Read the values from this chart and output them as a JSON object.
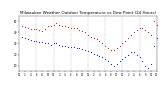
{
  "title": "Milwaukee Weather Outdoor Temperature vs Dew Point (24 Hours)",
  "title_fontsize": 3.0,
  "bg_color": "#ffffff",
  "temp_color": "#cc0000",
  "dew_color": "#0000cc",
  "black_color": "#000000",
  "grid_color": "#999999",
  "hours": [
    1,
    2,
    3,
    4,
    5,
    6,
    7,
    8,
    9,
    10,
    11,
    12,
    13,
    14,
    15,
    16,
    17,
    18,
    19,
    20,
    21,
    22,
    23,
    24,
    25,
    26,
    27,
    28,
    29,
    30,
    31,
    32,
    33,
    34,
    35,
    36,
    37,
    38,
    39,
    40,
    41,
    42,
    43,
    44,
    45,
    46,
    47,
    48
  ],
  "temp": [
    46,
    45,
    44,
    43,
    43,
    43,
    42,
    41,
    43,
    46,
    46,
    47,
    48,
    47,
    46,
    46,
    45,
    44,
    44,
    44,
    42,
    41,
    40,
    38,
    36,
    35,
    34,
    32,
    30,
    28,
    26,
    24,
    24,
    26,
    28,
    30,
    32,
    35,
    38,
    40,
    42,
    44,
    44,
    42,
    40,
    38,
    50,
    47
  ],
  "dew": [
    36,
    35,
    34,
    33,
    32,
    32,
    31,
    31,
    30,
    30,
    29,
    30,
    30,
    29,
    28,
    28,
    27,
    27,
    27,
    26,
    26,
    25,
    24,
    23,
    22,
    21,
    20,
    19,
    18,
    16,
    14,
    12,
    10,
    12,
    14,
    16,
    18,
    20,
    22,
    22,
    20,
    18,
    14,
    10,
    8,
    12,
    28,
    35
  ],
  "ylim": [
    5,
    55
  ],
  "ytick_vals": [
    10,
    20,
    30,
    40,
    50
  ],
  "ytick_labels": [
    "10",
    "20",
    "30",
    "40",
    "50"
  ],
  "vgrid_every": 6,
  "n_points": 48,
  "marker_size": 0.8
}
